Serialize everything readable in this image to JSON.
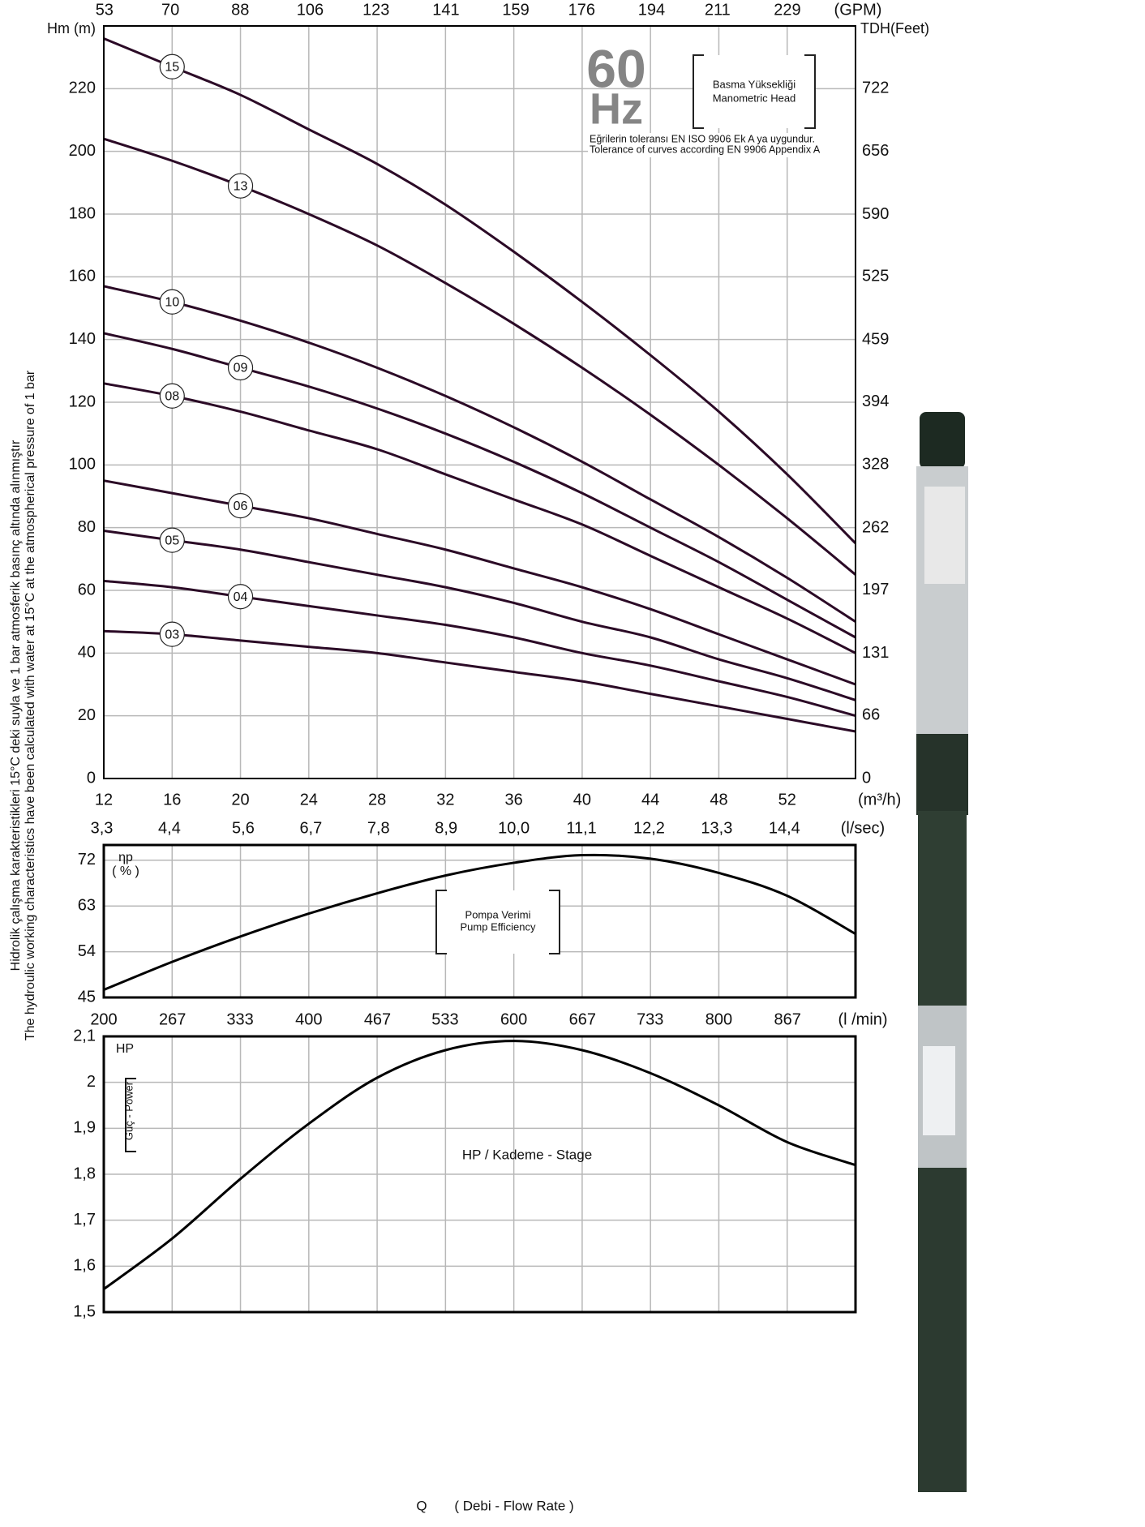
{
  "chart_data": [
    {
      "type": "line",
      "y_label": "Hm (m)",
      "y2_label": "TDH(Feet)",
      "x_label": "(m³/h)",
      "x": [
        12,
        16,
        20,
        24,
        28,
        32,
        36,
        40,
        44,
        48,
        52,
        56
      ],
      "xlim": [
        12,
        56
      ],
      "xticks": [
        12,
        16,
        20,
        24,
        28,
        32,
        36,
        40,
        44,
        48,
        52
      ],
      "ylim": [
        0,
        240
      ],
      "yticks": [
        0,
        20,
        40,
        60,
        80,
        100,
        120,
        140,
        160,
        180,
        200,
        220
      ],
      "y2lim": [
        0,
        787.4
      ],
      "y2ticks": [
        0,
        66,
        131,
        197,
        262,
        328,
        394,
        459,
        525,
        590,
        656,
        722
      ],
      "top_axis": {
        "label": "(GPM)",
        "lim": [
          52.83,
          246.56
        ],
        "ticks": [
          53,
          70,
          88,
          106,
          123,
          141,
          159,
          176,
          194,
          211,
          229
        ]
      },
      "grid": true,
      "series": [
        {
          "name": "15",
          "color": "#2b0a26",
          "values": [
            236,
            227,
            218,
            207,
            196,
            183,
            168,
            152,
            135,
            117,
            97,
            75
          ]
        },
        {
          "name": "13",
          "color": "#2b0a26",
          "values": [
            204,
            197,
            189,
            180,
            170,
            158,
            145,
            131,
            116,
            100,
            83,
            65
          ]
        },
        {
          "name": "10",
          "color": "#2b0a26",
          "values": [
            157,
            152,
            146,
            139,
            131,
            122,
            112,
            101,
            89,
            77,
            64,
            50
          ]
        },
        {
          "name": "09",
          "color": "#2b0a26",
          "values": [
            142,
            137,
            131,
            125,
            118,
            110,
            101,
            91,
            80,
            69,
            57,
            45
          ]
        },
        {
          "name": "08",
          "color": "#2b0a26",
          "values": [
            126,
            122,
            117,
            111,
            105,
            97,
            89,
            81,
            71,
            61,
            51,
            40
          ]
        },
        {
          "name": "06",
          "color": "#2b0a26",
          "values": [
            95,
            91,
            87,
            83,
            78,
            73,
            67,
            61,
            54,
            46,
            38,
            30
          ]
        },
        {
          "name": "05",
          "color": "#2b0a26",
          "values": [
            79,
            76,
            73,
            69,
            65,
            61,
            56,
            50,
            45,
            38,
            32,
            25
          ]
        },
        {
          "name": "04",
          "color": "#2b0a26",
          "values": [
            63,
            61,
            58,
            55,
            52,
            49,
            45,
            40,
            36,
            31,
            26,
            20
          ]
        },
        {
          "name": "03",
          "color": "#2b0a26",
          "values": [
            47,
            46,
            44,
            42,
            40,
            37,
            34,
            31,
            27,
            23,
            19,
            15
          ]
        }
      ],
      "badge": [
        "60",
        "Hz"
      ],
      "head_label": [
        "Basma Yüksekliği",
        "Manometric Head"
      ],
      "tolerance": [
        "Eğrilerin toleransı EN ISO 9906 Ek A ya uygundur.",
        "Tolerance of curves according EN 9906 Appendix A"
      ]
    },
    {
      "type": "line",
      "flow_axis": {
        "label": "(l/sec)",
        "lim": [
          3.333,
          15.556
        ],
        "ticks": [
          {
            "value": 3.3,
            "label": "3,3"
          },
          {
            "value": 4.4,
            "label": "4,4"
          },
          {
            "value": 5.6,
            "label": "5,6"
          },
          {
            "value": 6.7,
            "label": "6,7"
          },
          {
            "value": 7.8,
            "label": "7,8"
          },
          {
            "value": 8.9,
            "label": "8,9"
          },
          {
            "value": 10,
            "label": "10,0"
          },
          {
            "value": 11.1,
            "label": "11,1"
          },
          {
            "value": 12.2,
            "label": "12,2"
          },
          {
            "value": 13.3,
            "label": "13,3"
          },
          {
            "value": 14.4,
            "label": "14,4"
          }
        ]
      },
      "y_label": [
        "ηp",
        "( % )"
      ],
      "x": [
        12,
        16,
        20,
        24,
        28,
        32,
        36,
        40,
        44,
        48,
        52,
        56
      ],
      "xlim": [
        12,
        56
      ],
      "ylim": [
        45,
        75
      ],
      "yticks": [
        45,
        54,
        63,
        72
      ],
      "series": [
        {
          "color": "#000000",
          "values": [
            46.5,
            52,
            57,
            61.5,
            65.5,
            69,
            71.5,
            73,
            72.3,
            69.5,
            65,
            57.5
          ]
        }
      ],
      "caption": [
        "Pompa Verimi",
        "Pump Efficiency"
      ]
    },
    {
      "type": "line",
      "flow_axis": {
        "label": "(l /min)",
        "lim": [
          200,
          933.33
        ],
        "ticks": [
          200,
          267,
          333,
          400,
          467,
          533,
          600,
          667,
          733,
          800,
          867
        ]
      },
      "y_label": [
        "HP"
      ],
      "y_side_label": "Güç - Power",
      "x": [
        12,
        16,
        20,
        24,
        28,
        32,
        36,
        40,
        44,
        48,
        52,
        56
      ],
      "xlim": [
        12,
        56
      ],
      "ylim": [
        1.5,
        2.1
      ],
      "yticks": [
        {
          "value": 1.5,
          "label": "1,5"
        },
        {
          "value": 1.6,
          "label": "1,6"
        },
        {
          "value": 1.7,
          "label": "1,7"
        },
        {
          "value": 1.8,
          "label": "1,8"
        },
        {
          "value": 1.9,
          "label": "1,9"
        },
        2,
        {
          "value": 2.1,
          "label": "2,1"
        }
      ],
      "series": [
        {
          "color": "#000000",
          "values": [
            1.55,
            1.66,
            1.79,
            1.91,
            2.01,
            2.07,
            2.09,
            2.07,
            2.02,
            1.95,
            1.87,
            1.82
          ]
        }
      ],
      "caption": [
        "HP / Kademe - Stage"
      ]
    }
  ],
  "notes": [
    "Hidrolik çalışma karakteristikleri 15°C deki suyla ve 1 bar atmosferik basınç altında alınmıştır",
    "The hydroulic working characteristics have been calculated with water at 15°C at the atmospherical pressure of 1 bar"
  ],
  "axis_title": [
    "Q",
    "( Debi - Flow Rate )"
  ]
}
